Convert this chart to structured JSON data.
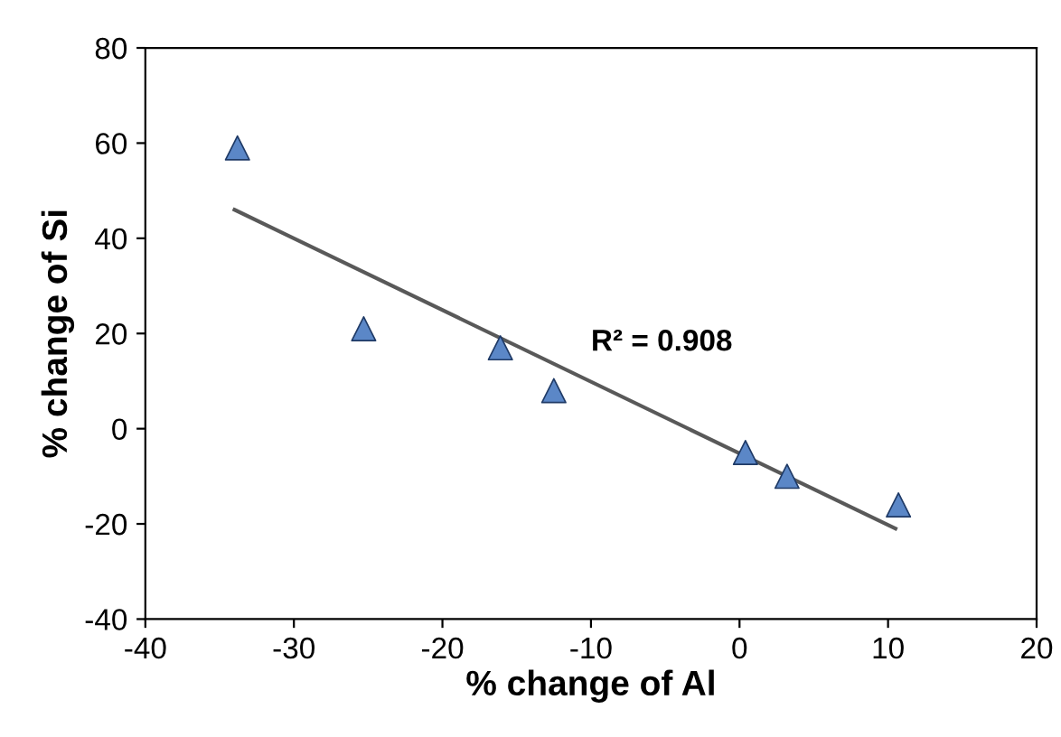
{
  "chart_data": {
    "type": "scatter",
    "xlabel": "% change of Al",
    "ylabel": "% change of Si",
    "xlim": [
      -40,
      20
    ],
    "xticks": [
      -40,
      -30,
      -20,
      -10,
      0,
      10,
      20
    ],
    "ylim": [
      -40,
      80
    ],
    "yticks": [
      -40,
      -20,
      0,
      20,
      40,
      60,
      80
    ],
    "grid": false,
    "legend": false,
    "annotations": [
      "R² = 0.908"
    ],
    "series": [
      {
        "marker": "triangle",
        "color": "#5b87c7",
        "x": [
          -33.8,
          -25.3,
          -16.1,
          -12.5,
          0.4,
          3.2,
          10.7
        ],
        "values": [
          59,
          21,
          17,
          8,
          -5,
          -10,
          -16
        ]
      },
      {
        "type": "line",
        "marker": "none",
        "color": "#595959",
        "x": [
          -34,
          10.5
        ],
        "values": [
          46,
          -21
        ]
      }
    ]
  }
}
